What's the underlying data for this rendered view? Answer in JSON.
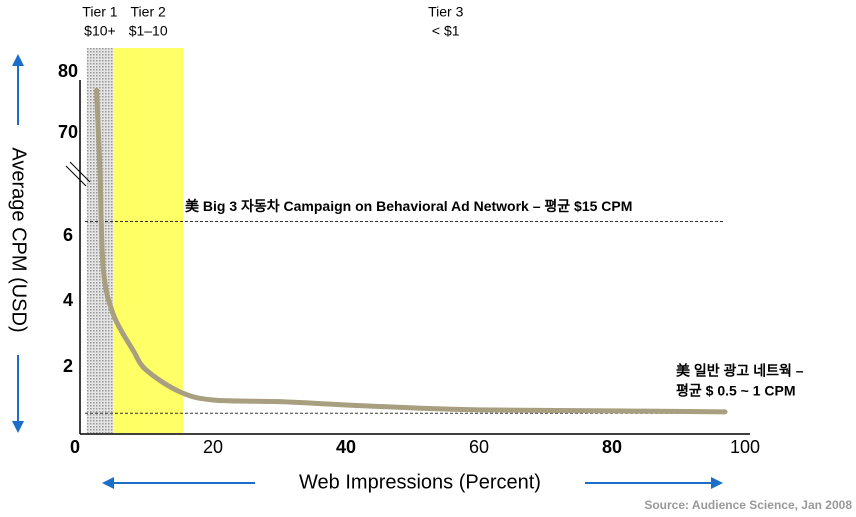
{
  "chart_data": {
    "type": "line",
    "x_label": "Web Impressions (Percent)",
    "y_label": "Average CPM (USD)",
    "source": "Source: Audience Science, Jan 2008",
    "xlim": [
      0,
      100
    ],
    "xticks": [
      0,
      20,
      40,
      60,
      80,
      100
    ],
    "ylim": [
      0,
      80
    ],
    "yticks": [
      0,
      2,
      4,
      6,
      70,
      80
    ],
    "bands": [
      {
        "name": "Tier 1",
        "label": "$10+",
        "range": [
          1,
          5
        ],
        "color": "#c8c8c8"
      },
      {
        "name": "Tier 2",
        "label": "$1–10",
        "range": [
          5,
          15.5
        ],
        "color": "#ffff66"
      },
      {
        "name": "Tier 3",
        "label": "< $1",
        "range": [
          15.5,
          100
        ],
        "color": null
      }
    ],
    "reference_lines": [
      {
        "value": 15,
        "label": [
          "美 Big 3 자동차 Campaign  on Behavioral Ad Network – 평균 $15 CPM"
        ]
      },
      {
        "value": 0.6,
        "label": [
          "美 일반 광고 네트웍  –",
          "평균 $ 0.5 ~ 1 CPM"
        ]
      }
    ],
    "series": [
      {
        "name": null,
        "color": "#a89f80",
        "x": [
          2.5,
          3,
          3.5,
          5,
          8,
          10,
          15,
          20,
          30,
          40,
          50,
          60,
          80,
          97
        ],
        "values": [
          77,
          47,
          5,
          3.6,
          2.5,
          1.9,
          1.25,
          1.0,
          0.95,
          0.85,
          0.76,
          0.7,
          0.67,
          0.64
        ]
      }
    ]
  }
}
